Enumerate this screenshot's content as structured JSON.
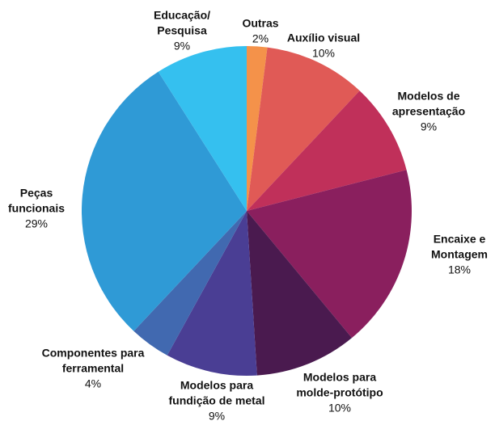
{
  "chart_data": {
    "type": "pie",
    "categories": [
      [
        "Outras"
      ],
      [
        "Auxílio visual"
      ],
      [
        "Modelos de",
        "apresentação"
      ],
      [
        "Encaixe e",
        "Montagem"
      ],
      [
        "Modelos para",
        "molde-protótipo"
      ],
      [
        "Modelos para",
        "fundição de metal"
      ],
      [
        "Componentes para",
        "ferramental"
      ],
      [
        "Peças",
        "funcionais"
      ],
      [
        "Educação/",
        "Pesquisa"
      ]
    ],
    "values": [
      2,
      10,
      9,
      18,
      10,
      9,
      4,
      29,
      9
    ],
    "value_labels": [
      "2%",
      "10%",
      "9%",
      "18%",
      "10%",
      "9%",
      "4%",
      "29%",
      "9%"
    ],
    "colors": [
      "#f4924a",
      "#e05a56",
      "#c0305a",
      "#8a1f5e",
      "#4a1a4f",
      "#4a3e94",
      "#4169b0",
      "#2f9ad6",
      "#35c0ef"
    ]
  }
}
